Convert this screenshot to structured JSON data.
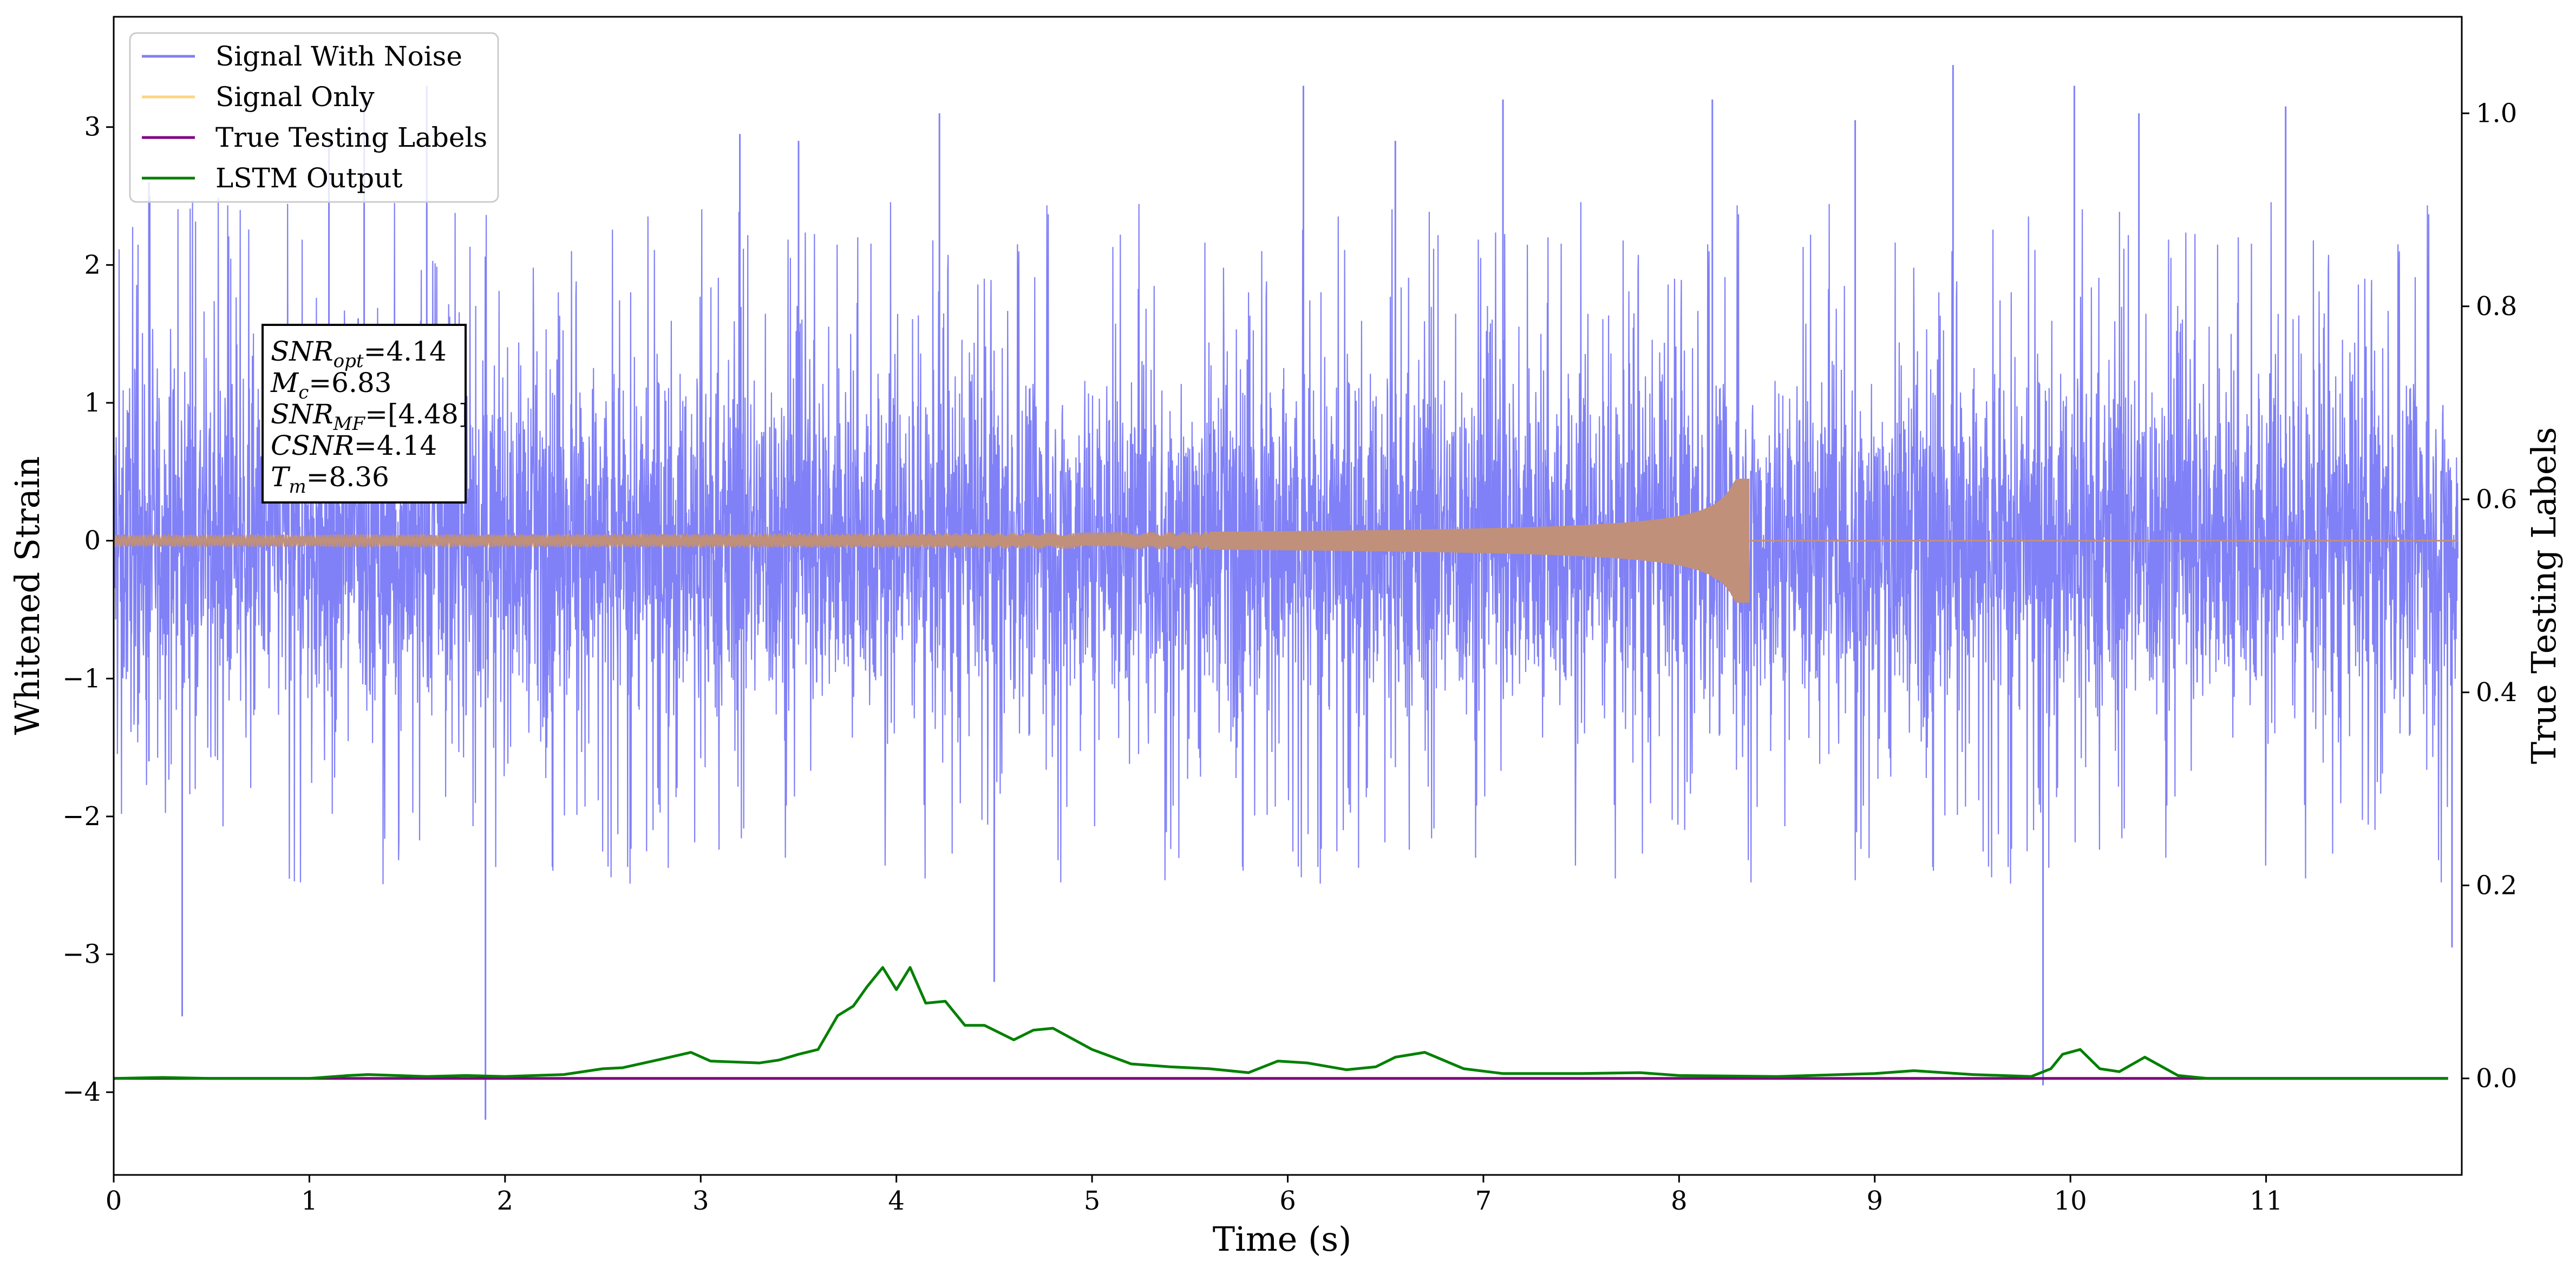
{
  "chart_data": {
    "type": "line",
    "xlabel": "Time (s)",
    "ylabel_left": "Whitened Strain",
    "ylabel_right": "True Testing Labels",
    "xlim": [
      0,
      12
    ],
    "ylim_left": [
      -4.6,
      3.8
    ],
    "ylim_right": [
      -0.1,
      1.1
    ],
    "x_ticks": [
      0,
      1,
      2,
      3,
      4,
      5,
      6,
      7,
      8,
      9,
      10,
      11
    ],
    "x_tick_labels": [
      "0",
      "1",
      "2",
      "3",
      "4",
      "5",
      "6",
      "7",
      "8",
      "9",
      "10",
      "11"
    ],
    "y_left_ticks": [
      -4,
      -3,
      -2,
      -1,
      0,
      1,
      2,
      3
    ],
    "y_left_tick_labels": [
      "−4",
      "−3",
      "−2",
      "−1",
      "0",
      "1",
      "2",
      "3"
    ],
    "y_right_ticks": [
      0.0,
      0.2,
      0.4,
      0.6,
      0.8,
      1.0
    ],
    "y_right_tick_labels": [
      "0.0",
      "0.2",
      "0.4",
      "0.6",
      "0.8",
      "1.0"
    ],
    "grid": false,
    "legend_position": "top-left",
    "legend": [
      {
        "label": "Signal With Noise",
        "color": "#8080f7"
      },
      {
        "label": "Signal Only",
        "color": "#ffd580"
      },
      {
        "label": "True Testing Labels",
        "color": "#800080"
      },
      {
        "label": "LSTM Output",
        "color": "#008000"
      }
    ],
    "info_box": {
      "lines": [
        {
          "main": "SNR",
          "sub": "opt",
          "rest": "=4.14"
        },
        {
          "main": "M",
          "sub": "c",
          "rest": "=6.83"
        },
        {
          "main": "SNR",
          "sub": "MF",
          "rest": "=[4.48]"
        },
        {
          "main": "CSNR",
          "sub": "",
          "rest": "=4.14"
        },
        {
          "main": "T",
          "sub": "m",
          "rest": "=8.36"
        }
      ]
    },
    "series": [
      {
        "name": "Signal With Noise",
        "axis": "left",
        "color": "#8080f7",
        "kind": "noise",
        "x_range": [
          0,
          11.98
        ],
        "core_amplitude": 1.15,
        "spike_extremes": [
          {
            "x": 0.18,
            "y": 2.6
          },
          {
            "x": 0.18,
            "y": -1.6
          },
          {
            "x": 0.35,
            "y": -3.45
          },
          {
            "x": 1.1,
            "y": 2.9
          },
          {
            "x": 1.28,
            "y": 3.25
          },
          {
            "x": 1.6,
            "y": 3.3
          },
          {
            "x": 1.9,
            "y": -4.2
          },
          {
            "x": 3.2,
            "y": 2.95
          },
          {
            "x": 3.5,
            "y": 2.9
          },
          {
            "x": 4.22,
            "y": 3.1
          },
          {
            "x": 4.5,
            "y": -3.2
          },
          {
            "x": 6.08,
            "y": 3.3
          },
          {
            "x": 6.55,
            "y": 2.9
          },
          {
            "x": 7.1,
            "y": 3.2
          },
          {
            "x": 8.17,
            "y": 3.2
          },
          {
            "x": 8.9,
            "y": 3.05
          },
          {
            "x": 9.4,
            "y": 3.45
          },
          {
            "x": 10.02,
            "y": 3.3
          },
          {
            "x": 10.35,
            "y": 3.1
          },
          {
            "x": 11.1,
            "y": 3.15
          },
          {
            "x": 9.86,
            "y": -3.95
          },
          {
            "x": 11.95,
            "y": -2.95
          }
        ]
      },
      {
        "name": "Signal Only",
        "axis": "left",
        "color": "#ffd580",
        "kind": "chirp",
        "start_time": 0,
        "merger_time": 8.36,
        "end_time": 11.98,
        "peak_amplitude": 0.45
      },
      {
        "name": "True Testing Labels",
        "axis": "right",
        "color": "#800080",
        "x": [
          0,
          11.93
        ],
        "y": [
          0.0,
          0.0
        ]
      },
      {
        "name": "LSTM Output",
        "axis": "right",
        "color": "#008000",
        "x": [
          0,
          0.25,
          0.5,
          1.0,
          1.2,
          1.3,
          1.6,
          1.8,
          2.0,
          2.3,
          2.5,
          2.6,
          2.8,
          2.95,
          3.05,
          3.3,
          3.4,
          3.5,
          3.6,
          3.7,
          3.78,
          3.85,
          3.93,
          4.0,
          4.07,
          4.15,
          4.25,
          4.35,
          4.45,
          4.6,
          4.7,
          4.8,
          5.0,
          5.2,
          5.4,
          5.6,
          5.8,
          5.95,
          6.1,
          6.3,
          6.45,
          6.55,
          6.7,
          6.9,
          7.1,
          7.3,
          7.5,
          7.8,
          8.0,
          8.5,
          9.0,
          9.2,
          9.5,
          9.8,
          9.9,
          9.96,
          10.05,
          10.15,
          10.25,
          10.38,
          10.55,
          10.7,
          11.93
        ],
        "y": [
          0.0,
          0.001,
          0.0,
          0.0,
          0.003,
          0.004,
          0.002,
          0.003,
          0.002,
          0.004,
          0.01,
          0.011,
          0.02,
          0.027,
          0.018,
          0.016,
          0.019,
          0.025,
          0.03,
          0.065,
          0.075,
          0.095,
          0.115,
          0.092,
          0.115,
          0.078,
          0.08,
          0.055,
          0.055,
          0.04,
          0.05,
          0.052,
          0.03,
          0.015,
          0.012,
          0.01,
          0.006,
          0.018,
          0.016,
          0.009,
          0.012,
          0.022,
          0.027,
          0.01,
          0.005,
          0.005,
          0.005,
          0.006,
          0.003,
          0.002,
          0.005,
          0.008,
          0.004,
          0.002,
          0.01,
          0.025,
          0.03,
          0.01,
          0.007,
          0.022,
          0.003,
          0.0,
          0.0
        ]
      }
    ]
  }
}
